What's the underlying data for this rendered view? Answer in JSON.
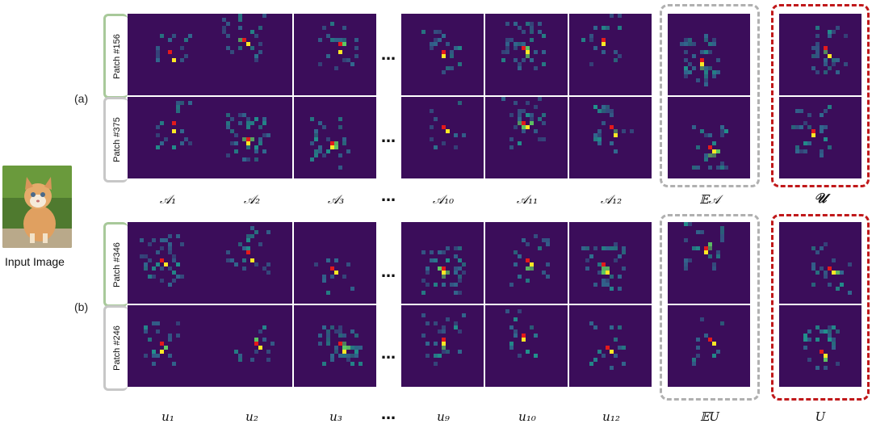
{
  "input_image": {
    "label": "Input Image"
  },
  "group_a": {
    "label": "(a)",
    "rows": [
      {
        "tag": "Patch #156"
      },
      {
        "tag": "Patch #375"
      }
    ],
    "columns": [
      "𝒜₁",
      "𝒜₂",
      "𝒜₃",
      "𝒜₁₀",
      "𝒜₁₁",
      "𝒜₁₂",
      "𝔼𝒜",
      "𝒰"
    ]
  },
  "group_b": {
    "label": "(b)",
    "rows": [
      {
        "tag": "Patch #346"
      },
      {
        "tag": "Patch #246"
      }
    ],
    "columns": [
      "𝑢₁",
      "𝑢₂",
      "𝑢₃",
      "𝑢₉",
      "𝑢₁₀",
      "𝑢₁₂",
      "𝔼U",
      "U"
    ]
  },
  "ellipsis": "…",
  "colors": {
    "heatmap_background": "#3b0d5a",
    "low": "#31688e",
    "mid": "#21918c",
    "high": "#5ec962",
    "peak": "#fde725",
    "query_patch": "#e31a1c",
    "row_border_green": "#a8c99a",
    "row_border_gray": "#c7c7c7",
    "expectation_box": "#b0b0b0",
    "highlight_box": "#c0181a"
  }
}
